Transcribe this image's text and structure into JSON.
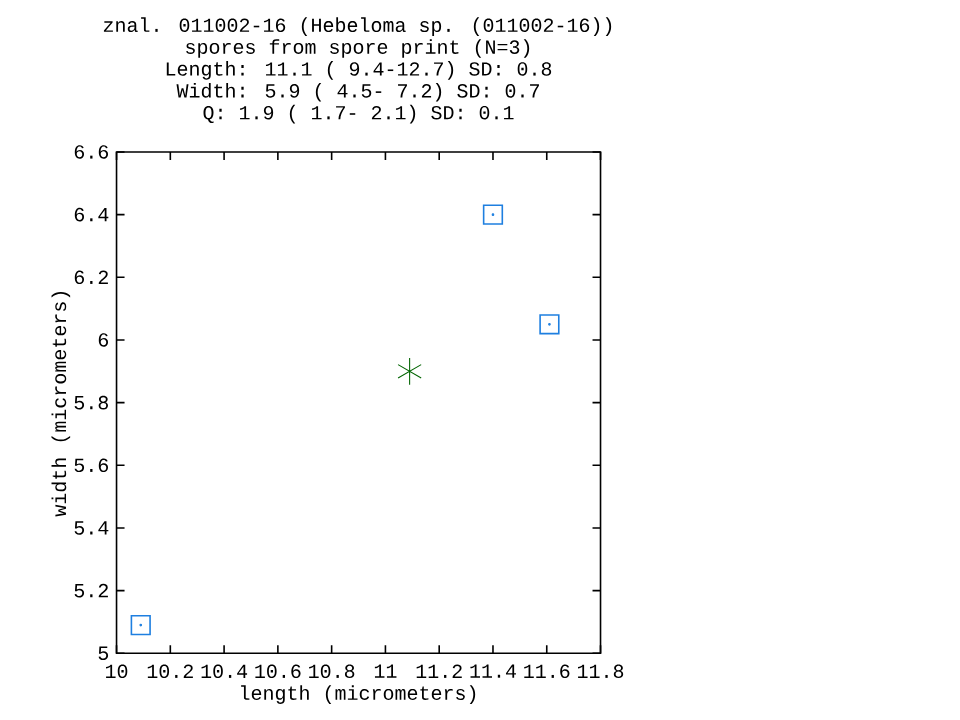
{
  "chart_data": {
    "type": "scatter",
    "title": "znal. 011002-16 (Hebeloma sp. (011002-16))",
    "subtitle": "spores from spore print (N=3)",
    "annotations": [
      "Length: 11.1 ( 9.4-12.7) SD: 0.8",
      "Width:  5.9 ( 4.5- 7.2) SD: 0.7",
      "Q:  1.9 ( 1.7- 2.1) SD: 0.1"
    ],
    "xlabel": "length (micrometers)",
    "ylabel": "width (micrometers)",
    "xlim": [
      10,
      11.8
    ],
    "xticks": [
      10,
      10.2,
      10.4,
      10.6,
      10.8,
      11,
      11.2,
      11.4,
      11.6,
      11.8
    ],
    "ylim": [
      5,
      6.6
    ],
    "yticks": [
      5,
      5.2,
      5.4,
      5.6,
      5.8,
      6,
      6.2,
      6.4,
      6.6
    ],
    "grid": false,
    "series": [
      {
        "color": "#1e7fe0",
        "marker": "square",
        "x": [
          10.09,
          11.4,
          11.61
        ],
        "values": [
          5.09,
          6.4,
          6.05
        ]
      },
      {
        "color": "#006400",
        "marker": "cross",
        "x": [
          11.09
        ],
        "values": [
          5.9
        ]
      }
    ]
  }
}
